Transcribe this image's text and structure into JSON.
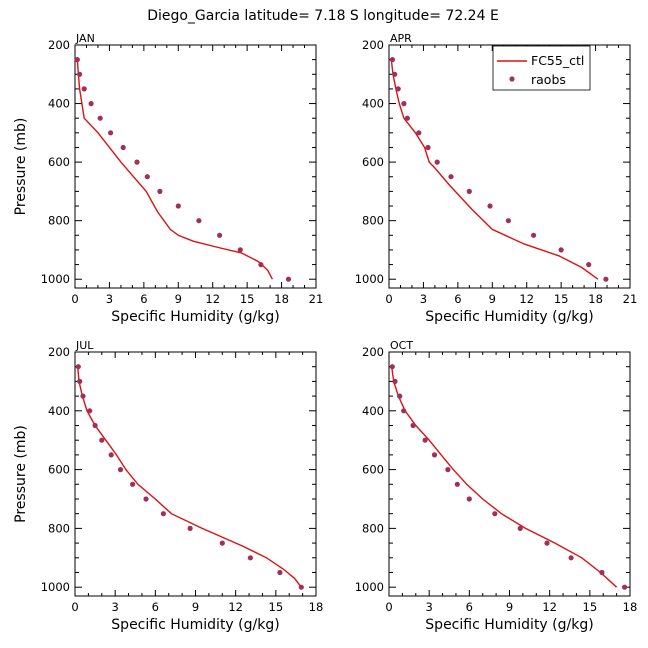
{
  "title": "Diego_Garcia  latitude= 7.18 S longitude= 72.24 E",
  "legend": {
    "line_label": "FC55_ctl",
    "dot_label": "raobs"
  },
  "colors": {
    "model_line": "#dd1111",
    "obs_dots": "#a0305a",
    "axes": "#000000"
  },
  "chart_data": [
    {
      "type": "line",
      "panel": "JAN",
      "title": "JAN",
      "xlabel": "Specific Humidity (g/kg)",
      "ylabel": "Pressure (mb)",
      "xlim": [
        0,
        21
      ],
      "ylim": [
        200,
        1030
      ],
      "y_reversed": true,
      "x_ticks": [
        0,
        3,
        6,
        9,
        12,
        15,
        18,
        21
      ],
      "y_ticks": [
        200,
        400,
        600,
        800,
        1000
      ],
      "legend": false,
      "series": [
        {
          "name": "FC55_ctl",
          "kind": "line",
          "x": [
            0.2,
            0.3,
            0.4,
            0.6,
            0.8,
            2.0,
            4.0,
            6.2,
            7.2,
            8.3,
            9.0,
            10.3,
            12.3,
            14.5,
            16.0,
            16.8,
            17.2
          ],
          "y": [
            250,
            300,
            350,
            400,
            450,
            500,
            600,
            700,
            770,
            830,
            850,
            870,
            890,
            910,
            940,
            970,
            1000
          ]
        },
        {
          "name": "raobs",
          "kind": "points",
          "x": [
            0.2,
            0.4,
            0.8,
            1.4,
            2.2,
            3.1,
            4.2,
            5.4,
            6.3,
            7.4,
            9.0,
            10.8,
            12.6,
            14.4,
            16.2,
            18.6
          ],
          "y": [
            250,
            300,
            350,
            400,
            450,
            500,
            550,
            600,
            650,
            700,
            750,
            800,
            850,
            900,
            950,
            1000
          ]
        }
      ]
    },
    {
      "type": "line",
      "panel": "APR",
      "title": "APR",
      "xlabel": "Specific Humidity (g/kg)",
      "ylabel": "Pressure (mb)",
      "xlim": [
        0,
        21
      ],
      "ylim": [
        200,
        1030
      ],
      "y_reversed": true,
      "x_ticks": [
        0,
        3,
        6,
        9,
        12,
        15,
        18,
        21
      ],
      "y_ticks": [
        200,
        400,
        600,
        800,
        1000
      ],
      "legend": true,
      "legend_position": "top-right",
      "series": [
        {
          "name": "FC55_ctl",
          "kind": "line",
          "x": [
            0.2,
            0.35,
            0.6,
            0.9,
            1.3,
            2.3,
            3.1,
            3.5,
            4.0,
            5.3,
            7.2,
            9.0,
            11.8,
            14.8,
            16.8,
            18.2
          ],
          "y": [
            250,
            300,
            350,
            400,
            450,
            500,
            550,
            600,
            620,
            680,
            760,
            830,
            880,
            920,
            960,
            1000
          ]
        },
        {
          "name": "raobs",
          "kind": "points",
          "x": [
            0.3,
            0.5,
            0.8,
            1.3,
            1.6,
            2.6,
            3.4,
            4.2,
            5.4,
            7.0,
            8.8,
            10.4,
            12.6,
            15.0,
            17.4,
            18.9
          ],
          "y": [
            250,
            300,
            350,
            400,
            450,
            500,
            550,
            600,
            650,
            700,
            750,
            800,
            850,
            900,
            950,
            1000
          ]
        }
      ]
    },
    {
      "type": "line",
      "panel": "JUL",
      "title": "JUL",
      "xlabel": "Specific Humidity (g/kg)",
      "ylabel": "Pressure (mb)",
      "xlim": [
        0,
        18
      ],
      "ylim": [
        200,
        1030
      ],
      "y_reversed": true,
      "x_ticks": [
        0,
        3,
        6,
        9,
        12,
        15,
        18
      ],
      "y_ticks": [
        200,
        400,
        600,
        800,
        1000
      ],
      "legend": false,
      "series": [
        {
          "name": "FC55_ctl",
          "kind": "line",
          "x": [
            0.2,
            0.3,
            0.55,
            0.9,
            1.5,
            2.3,
            3.1,
            3.8,
            4.7,
            6.0,
            7.2,
            9.5,
            12.5,
            14.3,
            15.6,
            16.4,
            16.9
          ],
          "y": [
            250,
            300,
            350,
            400,
            450,
            500,
            550,
            600,
            650,
            700,
            750,
            800,
            860,
            900,
            940,
            970,
            1000
          ]
        },
        {
          "name": "raobs",
          "kind": "points",
          "x": [
            0.25,
            0.35,
            0.6,
            1.1,
            1.5,
            2.0,
            2.7,
            3.4,
            4.3,
            5.3,
            6.6,
            8.6,
            11.0,
            13.1,
            15.3,
            16.9
          ],
          "y": [
            250,
            300,
            350,
            400,
            450,
            500,
            550,
            600,
            650,
            700,
            750,
            800,
            850,
            900,
            950,
            1000
          ]
        }
      ]
    },
    {
      "type": "line",
      "panel": "OCT",
      "title": "OCT",
      "xlabel": "Specific Humidity (g/kg)",
      "ylabel": "Pressure (mb)",
      "xlim": [
        0,
        18
      ],
      "ylim": [
        200,
        1030
      ],
      "y_reversed": true,
      "x_ticks": [
        0,
        3,
        6,
        9,
        12,
        15,
        18
      ],
      "y_ticks": [
        200,
        400,
        600,
        800,
        1000
      ],
      "legend": false,
      "series": [
        {
          "name": "FC55_ctl",
          "kind": "line",
          "x": [
            0.2,
            0.35,
            0.7,
            1.2,
            2.0,
            3.0,
            3.9,
            4.8,
            5.8,
            7.0,
            8.4,
            10.2,
            12.4,
            14.4,
            15.8,
            17.0
          ],
          "y": [
            250,
            300,
            350,
            400,
            450,
            500,
            550,
            600,
            650,
            700,
            750,
            800,
            850,
            900,
            950,
            1000
          ]
        },
        {
          "name": "raobs",
          "kind": "points",
          "x": [
            0.25,
            0.45,
            0.8,
            1.1,
            1.8,
            2.7,
            3.4,
            4.4,
            5.1,
            6.0,
            7.9,
            9.8,
            11.8,
            13.6,
            15.9,
            17.6
          ],
          "y": [
            250,
            300,
            350,
            400,
            450,
            500,
            550,
            600,
            650,
            700,
            750,
            800,
            850,
            900,
            950,
            1000
          ]
        }
      ]
    }
  ]
}
